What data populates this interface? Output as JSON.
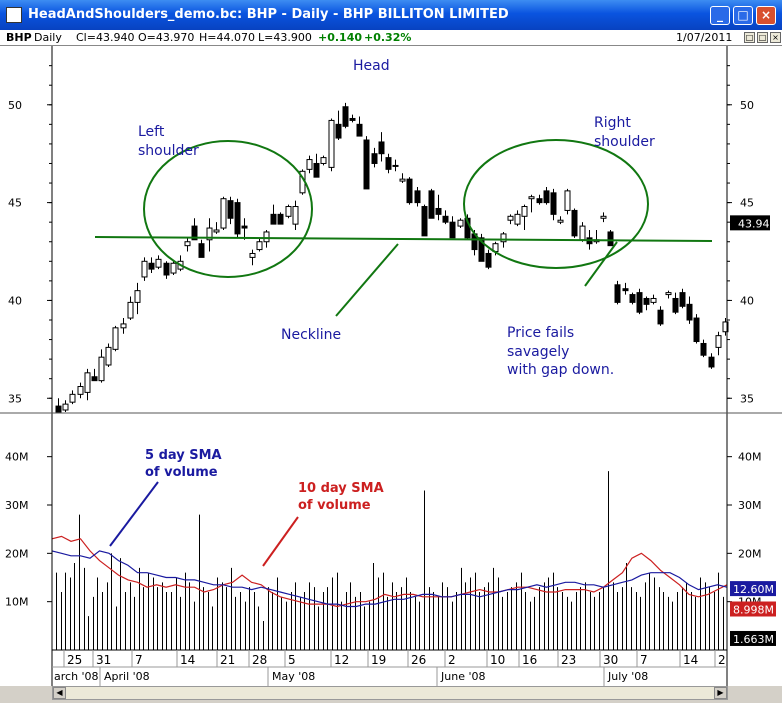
{
  "window": {
    "title": "HeadAndShoulders_demo.bc: BHP - Daily - BHP BILLITON LIMITED",
    "min_label": "_",
    "max_label": "□",
    "close_label": "×"
  },
  "infobar": {
    "symbol": "BHP",
    "period": "Daily",
    "close": "Cl=43.940",
    "open": "O=43.970",
    "high": "H=44.070",
    "low": "L=43.900",
    "change": "+0.140",
    "pct": "+0.32%",
    "date": "1/07/2011"
  },
  "colors": {
    "up_change": "#008000",
    "ellipse": "#117711",
    "annotation_text": "#1a1aa0",
    "sma5": "#1a1aa0",
    "sma10": "#cc2020"
  },
  "chart_data": [
    {
      "type": "candlestick",
      "title": "",
      "ylim": [
        34.4,
        52.8
      ],
      "yticks": [
        35,
        40,
        45,
        50
      ],
      "ytick_labels": [
        "35",
        "40",
        "45",
        "50"
      ],
      "last_price_label": "43.94",
      "grid": false,
      "candles": [
        {
          "o": 34.6,
          "h": 35.0,
          "l": 34.3,
          "c": 34.3
        },
        {
          "o": 34.4,
          "h": 34.9,
          "l": 34.3,
          "c": 34.7
        },
        {
          "o": 34.8,
          "h": 35.4,
          "l": 34.7,
          "c": 35.2
        },
        {
          "o": 35.2,
          "h": 35.8,
          "l": 35.0,
          "c": 35.6
        },
        {
          "o": 35.3,
          "h": 36.5,
          "l": 34.9,
          "c": 36.3
        },
        {
          "o": 36.1,
          "h": 36.5,
          "l": 35.9,
          "c": 35.9
        },
        {
          "o": 35.9,
          "h": 37.5,
          "l": 35.8,
          "c": 37.1
        },
        {
          "o": 36.7,
          "h": 37.8,
          "l": 36.6,
          "c": 37.6
        },
        {
          "o": 37.5,
          "h": 38.7,
          "l": 37.4,
          "c": 38.6
        },
        {
          "o": 38.6,
          "h": 39.1,
          "l": 38.3,
          "c": 38.8
        },
        {
          "o": 39.1,
          "h": 40.2,
          "l": 39.0,
          "c": 39.9
        },
        {
          "o": 39.9,
          "h": 40.9,
          "l": 39.3,
          "c": 40.5
        },
        {
          "o": 41.2,
          "h": 42.2,
          "l": 41.0,
          "c": 42.0
        },
        {
          "o": 41.9,
          "h": 42.2,
          "l": 41.4,
          "c": 41.6
        },
        {
          "o": 41.7,
          "h": 42.3,
          "l": 41.6,
          "c": 42.1
        },
        {
          "o": 41.9,
          "h": 42.0,
          "l": 41.1,
          "c": 41.3
        },
        {
          "o": 41.4,
          "h": 42.0,
          "l": 41.3,
          "c": 41.9
        },
        {
          "o": 41.6,
          "h": 42.3,
          "l": 41.5,
          "c": 42.0
        },
        {
          "o": 42.8,
          "h": 43.2,
          "l": 42.5,
          "c": 43.0
        },
        {
          "o": 43.8,
          "h": 44.2,
          "l": 43.1,
          "c": 43.1
        },
        {
          "o": 42.9,
          "h": 43.1,
          "l": 42.2,
          "c": 42.2
        },
        {
          "o": 43.1,
          "h": 44.2,
          "l": 42.5,
          "c": 43.7
        },
        {
          "o": 43.5,
          "h": 44.0,
          "l": 43.4,
          "c": 43.6
        },
        {
          "o": 43.7,
          "h": 45.3,
          "l": 43.6,
          "c": 45.2
        },
        {
          "o": 45.1,
          "h": 45.3,
          "l": 43.9,
          "c": 44.2
        },
        {
          "o": 45.0,
          "h": 45.2,
          "l": 43.2,
          "c": 43.4
        },
        {
          "o": 43.8,
          "h": 44.2,
          "l": 43.1,
          "c": 43.7
        },
        {
          "o": 42.2,
          "h": 42.6,
          "l": 41.8,
          "c": 42.4
        },
        {
          "o": 42.6,
          "h": 43.2,
          "l": 42.5,
          "c": 43.0
        },
        {
          "o": 43.0,
          "h": 43.6,
          "l": 42.7,
          "c": 43.5
        },
        {
          "o": 44.4,
          "h": 44.9,
          "l": 43.9,
          "c": 43.9
        },
        {
          "o": 44.4,
          "h": 44.5,
          "l": 43.9,
          "c": 43.9
        },
        {
          "o": 44.3,
          "h": 44.9,
          "l": 44.2,
          "c": 44.8
        },
        {
          "o": 43.9,
          "h": 45.1,
          "l": 43.6,
          "c": 44.8
        },
        {
          "o": 45.5,
          "h": 46.7,
          "l": 45.4,
          "c": 46.6
        },
        {
          "o": 46.7,
          "h": 47.4,
          "l": 46.5,
          "c": 47.2
        },
        {
          "o": 47.0,
          "h": 47.5,
          "l": 46.3,
          "c": 46.3
        },
        {
          "o": 47.0,
          "h": 47.4,
          "l": 46.9,
          "c": 47.3
        },
        {
          "o": 46.8,
          "h": 49.3,
          "l": 46.6,
          "c": 49.2
        },
        {
          "o": 49.0,
          "h": 49.7,
          "l": 48.2,
          "c": 48.3
        },
        {
          "o": 49.9,
          "h": 50.1,
          "l": 48.8,
          "c": 48.9
        },
        {
          "o": 49.3,
          "h": 49.5,
          "l": 49.1,
          "c": 49.2
        },
        {
          "o": 49.0,
          "h": 49.4,
          "l": 48.4,
          "c": 48.4
        },
        {
          "o": 48.2,
          "h": 48.4,
          "l": 45.7,
          "c": 45.7
        },
        {
          "o": 47.5,
          "h": 47.8,
          "l": 46.8,
          "c": 47.0
        },
        {
          "o": 48.1,
          "h": 48.6,
          "l": 47.1,
          "c": 47.5
        },
        {
          "o": 47.3,
          "h": 47.5,
          "l": 46.5,
          "c": 46.7
        },
        {
          "o": 46.9,
          "h": 47.2,
          "l": 46.6,
          "c": 46.9
        },
        {
          "o": 46.1,
          "h": 46.5,
          "l": 46.0,
          "c": 46.2
        },
        {
          "o": 46.2,
          "h": 46.3,
          "l": 44.9,
          "c": 45.0
        },
        {
          "o": 45.6,
          "h": 45.8,
          "l": 44.8,
          "c": 45.0
        },
        {
          "o": 44.8,
          "h": 44.9,
          "l": 43.3,
          "c": 43.3
        },
        {
          "o": 45.6,
          "h": 45.7,
          "l": 44.2,
          "c": 44.2
        },
        {
          "o": 44.7,
          "h": 45.4,
          "l": 44.1,
          "c": 44.4
        },
        {
          "o": 44.3,
          "h": 44.6,
          "l": 43.9,
          "c": 44.0
        },
        {
          "o": 44.0,
          "h": 44.3,
          "l": 43.2,
          "c": 43.2
        },
        {
          "o": 43.8,
          "h": 44.2,
          "l": 43.7,
          "c": 44.1
        },
        {
          "o": 44.2,
          "h": 44.4,
          "l": 43.1,
          "c": 43.2
        },
        {
          "o": 43.4,
          "h": 43.6,
          "l": 42.3,
          "c": 42.6
        },
        {
          "o": 43.2,
          "h": 43.4,
          "l": 42.0,
          "c": 42.0
        },
        {
          "o": 42.4,
          "h": 42.6,
          "l": 41.6,
          "c": 41.7
        },
        {
          "o": 42.5,
          "h": 43.0,
          "l": 42.3,
          "c": 42.9
        },
        {
          "o": 43.0,
          "h": 43.5,
          "l": 42.7,
          "c": 43.4
        },
        {
          "o": 44.1,
          "h": 44.4,
          "l": 43.9,
          "c": 44.3
        },
        {
          "o": 43.9,
          "h": 44.6,
          "l": 43.8,
          "c": 44.4
        },
        {
          "o": 44.3,
          "h": 44.9,
          "l": 43.6,
          "c": 44.8
        },
        {
          "o": 45.2,
          "h": 45.4,
          "l": 44.5,
          "c": 45.3
        },
        {
          "o": 45.2,
          "h": 45.4,
          "l": 44.9,
          "c": 45.0
        },
        {
          "o": 45.6,
          "h": 45.8,
          "l": 44.9,
          "c": 45.0
        },
        {
          "o": 45.5,
          "h": 45.7,
          "l": 44.1,
          "c": 44.4
        },
        {
          "o": 44.0,
          "h": 44.3,
          "l": 43.9,
          "c": 44.1
        },
        {
          "o": 44.6,
          "h": 45.7,
          "l": 44.4,
          "c": 45.6
        },
        {
          "o": 44.6,
          "h": 44.7,
          "l": 43.2,
          "c": 43.3
        },
        {
          "o": 43.1,
          "h": 44.0,
          "l": 43.0,
          "c": 43.8
        },
        {
          "o": 43.2,
          "h": 43.6,
          "l": 42.6,
          "c": 42.9
        },
        {
          "o": 43.0,
          "h": 43.6,
          "l": 42.9,
          "c": 43.1
        },
        {
          "o": 44.2,
          "h": 44.5,
          "l": 44.0,
          "c": 44.3
        },
        {
          "o": 43.5,
          "h": 43.6,
          "l": 42.8,
          "c": 42.8
        },
        {
          "o": 40.8,
          "h": 41.0,
          "l": 39.8,
          "c": 39.9
        },
        {
          "o": 40.6,
          "h": 40.9,
          "l": 40.3,
          "c": 40.5
        },
        {
          "o": 40.3,
          "h": 40.4,
          "l": 39.8,
          "c": 39.9
        },
        {
          "o": 40.4,
          "h": 40.6,
          "l": 39.3,
          "c": 39.4
        },
        {
          "o": 40.1,
          "h": 40.2,
          "l": 39.5,
          "c": 39.8
        },
        {
          "o": 39.9,
          "h": 40.3,
          "l": 39.8,
          "c": 40.1
        },
        {
          "o": 39.5,
          "h": 39.7,
          "l": 38.7,
          "c": 38.8
        },
        {
          "o": 40.3,
          "h": 40.5,
          "l": 40.1,
          "c": 40.4
        },
        {
          "o": 40.1,
          "h": 40.4,
          "l": 39.3,
          "c": 39.4
        },
        {
          "o": 40.4,
          "h": 40.6,
          "l": 39.6,
          "c": 39.7
        },
        {
          "o": 39.8,
          "h": 40.2,
          "l": 38.8,
          "c": 39.0
        },
        {
          "o": 39.1,
          "h": 39.3,
          "l": 37.8,
          "c": 37.9
        },
        {
          "o": 37.8,
          "h": 38.0,
          "l": 37.1,
          "c": 37.2
        },
        {
          "o": 37.1,
          "h": 37.3,
          "l": 36.5,
          "c": 36.6
        },
        {
          "o": 37.6,
          "h": 38.4,
          "l": 37.2,
          "c": 38.2
        },
        {
          "o": 38.4,
          "h": 39.1,
          "l": 38.2,
          "c": 38.9
        }
      ]
    },
    {
      "type": "bar",
      "title": "",
      "ylim": [
        0,
        48
      ],
      "yticks": [
        10,
        20,
        30,
        40
      ],
      "ytick_labels": [
        "10M",
        "20M",
        "30M",
        "40M"
      ],
      "unit": "M",
      "volume": [
        16,
        12,
        16,
        15,
        18,
        28,
        17,
        7,
        11,
        15,
        12,
        14,
        20,
        9,
        19,
        12,
        14,
        11,
        17,
        13,
        16,
        15,
        13,
        14,
        12,
        12,
        15,
        11,
        16,
        14,
        10,
        28,
        13,
        12,
        9,
        15,
        14,
        13,
        17,
        11,
        12,
        10,
        13,
        12,
        9,
        6,
        13,
        12,
        15,
        11,
        10,
        12,
        14,
        11,
        12,
        14,
        13,
        9,
        12,
        13,
        15,
        16,
        10,
        12,
        14,
        11,
        12,
        9,
        10,
        18,
        15,
        16,
        11,
        14,
        12,
        13,
        15,
        12,
        11,
        10,
        33,
        13,
        12,
        11,
        14,
        13,
        10,
        12,
        17,
        14,
        15,
        16,
        12,
        13,
        14,
        17,
        15,
        11,
        12,
        13,
        14,
        16,
        12,
        10,
        11,
        13,
        14,
        15,
        16,
        13,
        12,
        11,
        10,
        12,
        13,
        14,
        12,
        11,
        12,
        13,
        37,
        14,
        12,
        13,
        18,
        13,
        12,
        11,
        14,
        16,
        15,
        13,
        12,
        11,
        10,
        12,
        13,
        14,
        12,
        11,
        15,
        14,
        13,
        12,
        16,
        11
      ],
      "sma5": [
        20.5,
        20.0,
        19.5,
        19.5,
        19.0,
        20.5,
        20.0,
        18.5,
        17.5,
        16.0,
        16.0,
        15.5,
        15.0,
        15.0,
        14.5,
        14.5,
        14.0,
        13.5,
        13.5,
        13.0,
        13.0,
        12.5,
        13.0,
        12.5,
        12.0,
        11.5,
        11.0,
        10.5,
        10.0,
        9.5,
        9.5,
        9.0,
        9.0,
        9.5,
        9.5,
        10.0,
        10.5,
        10.5,
        11.0,
        11.5,
        11.5,
        11.0,
        11.0,
        11.5,
        11.5,
        11.0,
        11.5,
        12.0,
        12.5,
        12.5,
        13.0,
        13.5,
        13.0,
        13.5,
        14.0,
        14.0,
        13.5,
        13.5,
        13.0,
        13.5,
        14.0,
        14.5,
        15.5,
        16.0,
        16.0,
        16.0,
        15.0,
        13.5,
        12.5,
        13.0,
        13.5,
        13.0
      ],
      "sma10": [
        23.0,
        23.5,
        22.5,
        23.0,
        20.5,
        18.5,
        17.0,
        15.5,
        14.5,
        14.0,
        13.0,
        13.5,
        13.0,
        13.5,
        13.0,
        13.0,
        12.0,
        12.5,
        13.5,
        14.0,
        15.5,
        14.0,
        13.5,
        12.0,
        11.0,
        10.5,
        10.0,
        9.5,
        9.5,
        9.5,
        9.0,
        9.5,
        10.0,
        10.0,
        10.5,
        11.5,
        11.0,
        11.5,
        11.5,
        11.0,
        11.0,
        11.0,
        11.0,
        11.5,
        12.0,
        12.5,
        12.0,
        12.0,
        12.5,
        13.0,
        13.0,
        12.5,
        12.0,
        12.0,
        12.5,
        12.5,
        12.5,
        12.0,
        13.0,
        14.5,
        16.0,
        19.0,
        20.0,
        18.5,
        16.5,
        15.0,
        13.5,
        11.5,
        11.0,
        11.5,
        12.5,
        13.5
      ],
      "sma5_label": "12.60M",
      "sma10_label": "8.998M",
      "volume_label": "1.663M",
      "legend": "none"
    }
  ],
  "xaxis": {
    "day_ticks": [
      "25",
      "31",
      "7",
      "14",
      "21",
      "28",
      "5",
      "12",
      "19",
      "26",
      "2",
      "10",
      "16",
      "23",
      "30",
      "7",
      "14",
      "2"
    ],
    "month_labels": [
      "arch '08",
      "April '08",
      "May '08",
      "June '08",
      "July '08"
    ]
  },
  "annotations": {
    "left_shoulder_line1": "Left",
    "left_shoulder_line2": "shoulder",
    "head": "Head",
    "right_shoulder_line1": "Right",
    "right_shoulder_line2": "shoulder",
    "neckline": "Neckline",
    "fails_line1": "Price fails",
    "fails_line2": "savagely",
    "fails_line3": "with gap down.",
    "sma5_line1": "5 day SMA",
    "sma5_line2": "of volume",
    "sma10_line1": "10 day SMA",
    "sma10_line2": "of volume"
  }
}
